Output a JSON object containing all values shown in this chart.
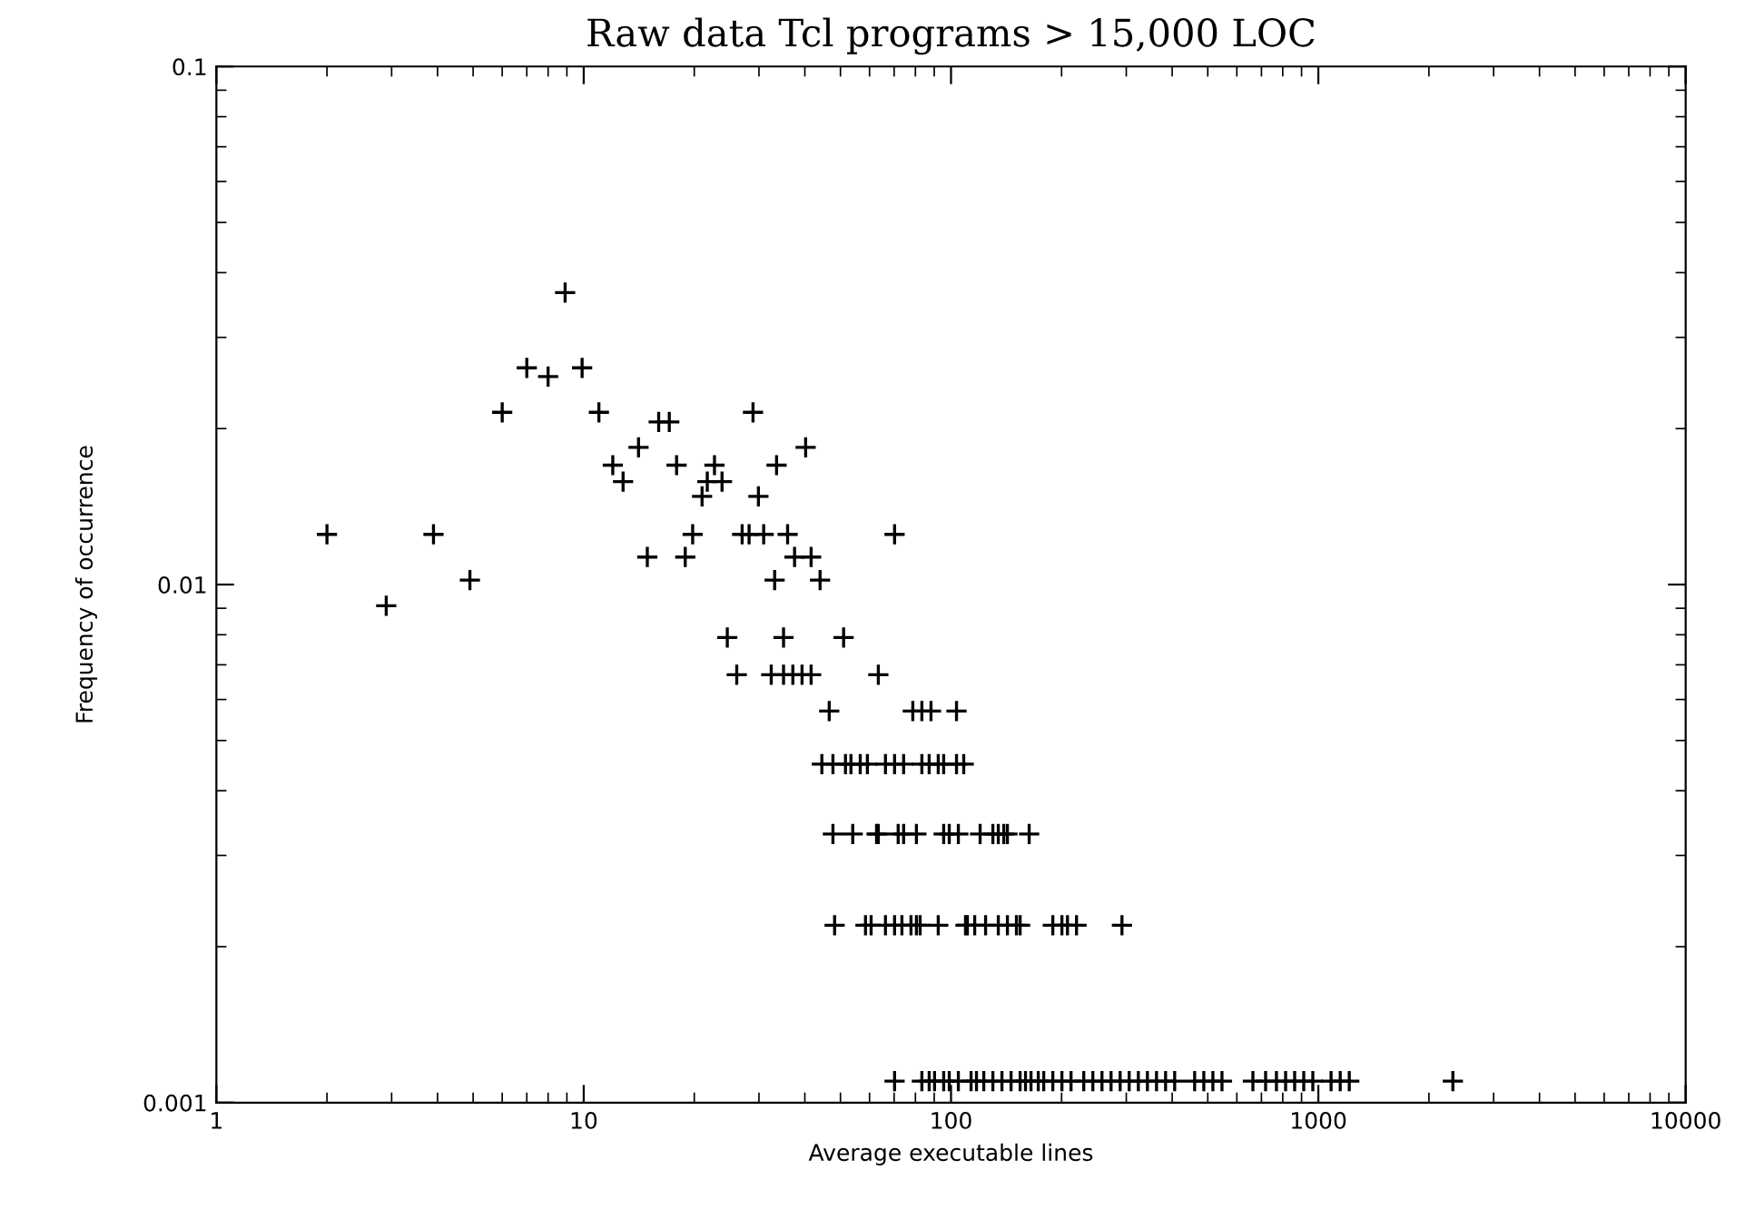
{
  "chart_data": {
    "type": "scatter",
    "title": "Raw data Tcl programs > 15,000 LOC",
    "xlabel": "Average executable lines",
    "ylabel": "Frequency of occurrence",
    "log": "xy",
    "xlim": [
      1,
      10000
    ],
    "ylim": [
      0.001,
      0.1
    ],
    "xticks": [
      1,
      10,
      100,
      1000,
      10000
    ],
    "yticks": [
      0.001,
      0.01,
      0.1
    ],
    "grid": false,
    "legend": false,
    "marker": "cross",
    "series": [
      {
        "color": "#000000",
        "x": [
          2.0,
          2.9,
          3.9,
          4.9,
          6.0,
          7.0,
          8.0,
          8.9,
          9.9,
          11,
          12,
          12.8,
          14.1,
          14.9,
          16,
          17.1,
          17.9,
          18.9,
          19.8,
          21,
          21.7,
          22.7,
          23.8,
          24.6,
          26.1,
          27,
          28.2,
          28.9,
          29.9,
          30.9,
          32.4,
          33.1,
          33.5,
          35,
          35,
          35.9,
          37.1,
          37.5,
          39.3,
          40.2,
          41.6,
          41.6,
          44,
          51,
          63.4,
          70.2,
          46.6,
          78.7,
          83.3,
          88.2,
          103.5,
          44.5,
          47.7,
          51.6,
          53.4,
          56.6,
          59.2,
          66.3,
          70.2,
          74.3,
          83.3,
          87.2,
          92.3,
          95.5,
          103.5,
          108.3,
          47.7,
          54,
          62.7,
          63.4,
          71.8,
          74.3,
          80.5,
          95.5,
          98.9,
          104.7,
          120,
          130,
          134.5,
          139.2,
          142.4,
          163.2,
          48.2,
          58.5,
          60.6,
          66.3,
          70.2,
          73.5,
          77.8,
          80.5,
          82.4,
          92.3,
          109.5,
          110.8,
          116,
          124.2,
          134.5,
          142.4,
          150.7,
          154.2,
          189.3,
          200.4,
          207.5,
          219.6,
          292,
          70.2,
          83.3,
          87.2,
          90.2,
          95.5,
          98.9,
          104.7,
          113.4,
          117.3,
          122.8,
          130,
          137.6,
          145.7,
          154.2,
          159.5,
          165.1,
          172.8,
          178.8,
          189.3,
          200.4,
          212.2,
          229.8,
          243.3,
          257.6,
          272.7,
          288.7,
          305.5,
          323.6,
          342.5,
          362.6,
          383.8,
          406.3,
          460.5,
          487.7,
          516.3,
          546.6,
          663.5,
          718.5,
          769,
          814.5,
          862,
          912.5,
          966,
          1083,
          1147,
          1214,
          2324
        ],
        "values": [
          0.0125,
          0.0091,
          0.0125,
          0.0102,
          0.0215,
          0.0262,
          0.0252,
          0.0366,
          0.0262,
          0.0215,
          0.017,
          0.0158,
          0.0184,
          0.0113,
          0.0206,
          0.0206,
          0.017,
          0.0113,
          0.0125,
          0.0148,
          0.0158,
          0.017,
          0.0158,
          0.0079,
          0.0067,
          0.0125,
          0.0125,
          0.0215,
          0.0148,
          0.0125,
          0.0067,
          0.0102,
          0.017,
          0.0079,
          0.0067,
          0.0125,
          0.0067,
          0.0113,
          0.0067,
          0.0184,
          0.0113,
          0.0067,
          0.0102,
          0.0079,
          0.0067,
          0.0125,
          0.0057,
          0.0057,
          0.0057,
          0.0057,
          0.0057,
          0.0045,
          0.0045,
          0.0045,
          0.0045,
          0.0045,
          0.0045,
          0.0045,
          0.0045,
          0.0045,
          0.0045,
          0.0045,
          0.0045,
          0.0045,
          0.0045,
          0.0045,
          0.0033,
          0.0033,
          0.0033,
          0.0033,
          0.0033,
          0.0033,
          0.0033,
          0.0033,
          0.0033,
          0.0033,
          0.0033,
          0.0033,
          0.0033,
          0.0033,
          0.0033,
          0.0033,
          0.0022,
          0.0022,
          0.0022,
          0.0022,
          0.0022,
          0.0022,
          0.0022,
          0.0022,
          0.0022,
          0.0022,
          0.0022,
          0.0022,
          0.0022,
          0.0022,
          0.0022,
          0.0022,
          0.0022,
          0.0022,
          0.0022,
          0.0022,
          0.0022,
          0.0022,
          0.0022,
          0.0011,
          0.0011,
          0.0011,
          0.0011,
          0.0011,
          0.0011,
          0.0011,
          0.0011,
          0.0011,
          0.0011,
          0.0011,
          0.0011,
          0.0011,
          0.0011,
          0.0011,
          0.0011,
          0.0011,
          0.0011,
          0.0011,
          0.0011,
          0.0011,
          0.0011,
          0.0011,
          0.0011,
          0.0011,
          0.0011,
          0.0011,
          0.0011,
          0.0011,
          0.0011,
          0.0011,
          0.0011,
          0.0011,
          0.0011,
          0.0011,
          0.0011,
          0.0011,
          0.0011,
          0.0011,
          0.0011,
          0.0011,
          0.0011,
          0.0011,
          0.0011,
          0.0011,
          0.0011,
          0.0011
        ]
      }
    ]
  }
}
